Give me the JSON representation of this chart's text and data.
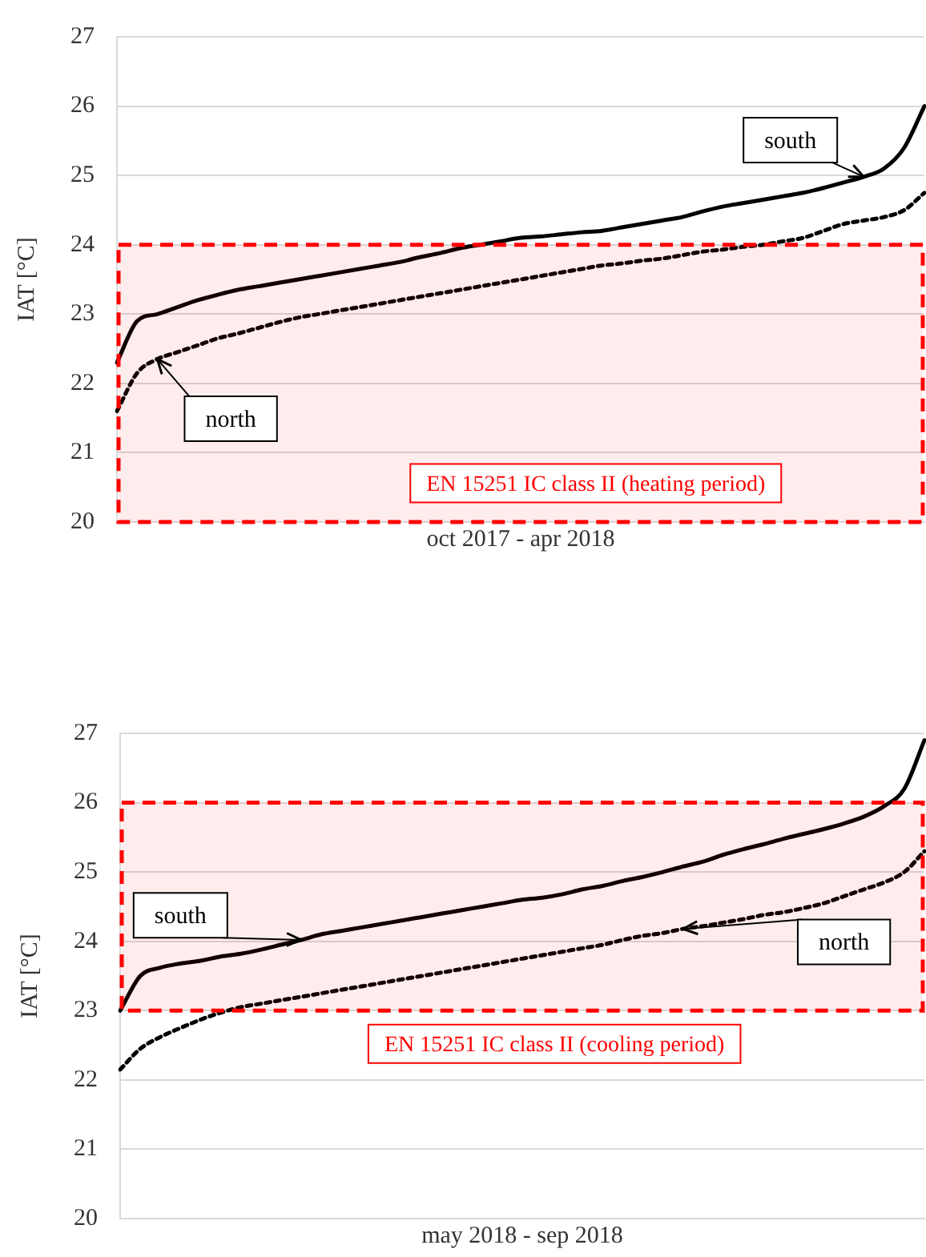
{
  "chart_data": [
    {
      "type": "line",
      "xlabel": "oct 2017 - apr 2018",
      "ylabel": "IAT [°C]",
      "categories": [
        null,
        null,
        null,
        null,
        null,
        null,
        null,
        null,
        null,
        null,
        null,
        null,
        null,
        null,
        null,
        null,
        null,
        null,
        null,
        null,
        null,
        null,
        null,
        null,
        null,
        null,
        null,
        null,
        null,
        null,
        null,
        null,
        null,
        null,
        null,
        null,
        null,
        null,
        null,
        null,
        null
      ],
      "series": [
        {
          "name": "south",
          "color": "#000000",
          "line_style": "solid",
          "values": [
            22.3,
            22.9,
            23.0,
            23.1,
            23.2,
            23.28,
            23.35,
            23.4,
            23.45,
            23.5,
            23.55,
            23.6,
            23.65,
            23.7,
            23.75,
            23.82,
            23.88,
            23.95,
            24.0,
            24.05,
            24.1,
            24.12,
            24.15,
            24.18,
            24.2,
            24.25,
            24.3,
            24.35,
            24.4,
            24.48,
            24.55,
            24.6,
            24.65,
            24.7,
            24.75,
            24.82,
            24.9,
            24.98,
            25.1,
            25.4,
            26.0
          ]
        },
        {
          "name": "north",
          "color": "#000000",
          "line_style": "dotted",
          "values": [
            21.6,
            22.15,
            22.35,
            22.45,
            22.55,
            22.65,
            22.72,
            22.8,
            22.88,
            22.95,
            23.0,
            23.05,
            23.1,
            23.15,
            23.2,
            23.25,
            23.3,
            23.35,
            23.4,
            23.45,
            23.5,
            23.55,
            23.6,
            23.65,
            23.7,
            23.73,
            23.77,
            23.8,
            23.85,
            23.9,
            23.93,
            23.97,
            24.0,
            24.05,
            24.1,
            24.2,
            24.3,
            24.35,
            24.4,
            24.5,
            24.75
          ]
        }
      ],
      "ylim": [
        20,
        27
      ],
      "yticks": [
        20,
        21,
        22,
        23,
        24,
        25,
        26,
        27
      ],
      "grid": "y",
      "legend": false,
      "tick_labels": "y",
      "marker": "none",
      "bands": [
        {
          "axis": "y",
          "from": 20,
          "to": 24,
          "label": "EN 15251 IC class II (heating period)",
          "color": "#ff0000"
        }
      ]
    },
    {
      "type": "line",
      "xlabel": "may 2018 - sep 2018",
      "ylabel": "IAT [°C]",
      "categories": [
        null,
        null,
        null,
        null,
        null,
        null,
        null,
        null,
        null,
        null,
        null,
        null,
        null,
        null,
        null,
        null,
        null,
        null,
        null,
        null,
        null,
        null,
        null,
        null,
        null,
        null,
        null,
        null,
        null,
        null,
        null,
        null,
        null,
        null,
        null,
        null,
        null,
        null,
        null,
        null,
        null
      ],
      "series": [
        {
          "name": "south",
          "color": "#000000",
          "line_style": "solid",
          "values": [
            23.0,
            23.5,
            23.62,
            23.68,
            23.72,
            23.78,
            23.82,
            23.88,
            23.95,
            24.02,
            24.1,
            24.15,
            24.2,
            24.25,
            24.3,
            24.35,
            24.4,
            24.45,
            24.5,
            24.55,
            24.6,
            24.63,
            24.68,
            24.75,
            24.8,
            24.87,
            24.93,
            25.0,
            25.08,
            25.15,
            25.25,
            25.33,
            25.4,
            25.48,
            25.55,
            25.62,
            25.7,
            25.8,
            25.95,
            26.2,
            26.9
          ]
        },
        {
          "name": "north",
          "color": "#000000",
          "line_style": "dotted",
          "values": [
            22.15,
            22.45,
            22.62,
            22.75,
            22.87,
            22.97,
            23.05,
            23.1,
            23.15,
            23.2,
            23.25,
            23.3,
            23.35,
            23.4,
            23.45,
            23.5,
            23.55,
            23.6,
            23.65,
            23.7,
            23.75,
            23.8,
            23.85,
            23.9,
            23.95,
            24.02,
            24.08,
            24.12,
            24.18,
            24.22,
            24.27,
            24.32,
            24.38,
            24.42,
            24.48,
            24.55,
            24.65,
            24.75,
            24.85,
            25.0,
            25.3
          ]
        }
      ],
      "ylim": [
        20,
        27
      ],
      "yticks": [
        20,
        21,
        22,
        23,
        24,
        25,
        26,
        27
      ],
      "grid": "y",
      "legend": false,
      "tick_labels": "y",
      "marker": "none",
      "bands": [
        {
          "axis": "y",
          "from": 23,
          "to": 26,
          "label": "EN 15251 IC class II (cooling period)",
          "color": "#ff0000"
        }
      ]
    }
  ]
}
